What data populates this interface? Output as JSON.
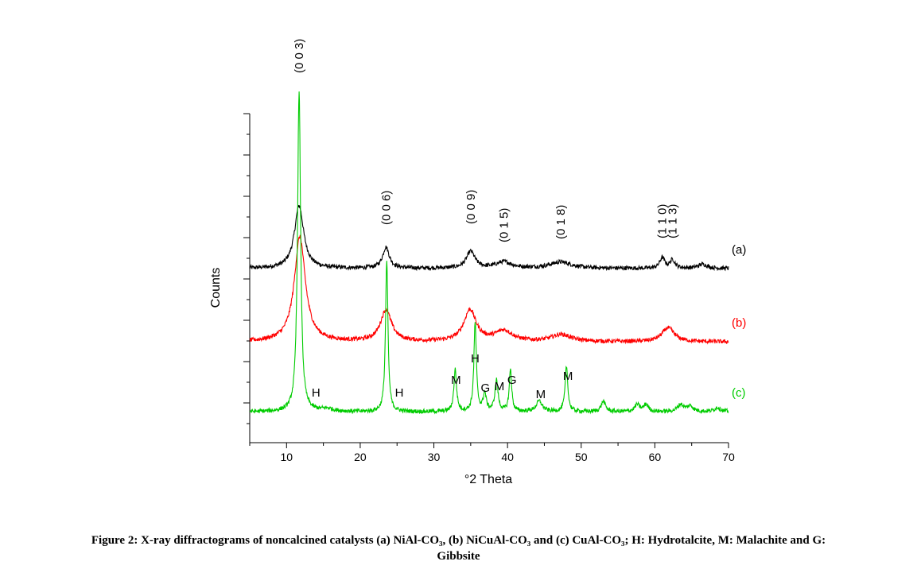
{
  "chart_data": {
    "type": "line",
    "xlabel": "°2 Theta",
    "ylabel": "Counts",
    "xlim": [
      5,
      70
    ],
    "xticks": [
      "10",
      "20",
      "30",
      "40",
      "50",
      "60",
      "70"
    ],
    "yticks_labeled": false,
    "grid": false,
    "series": [
      {
        "name": "(a)",
        "color": "#000000",
        "offset": 2.05,
        "baseline": 0.02,
        "peaks": [
          [
            11.7,
            0.9,
            0.75
          ],
          [
            23.5,
            0.3,
            0.55
          ],
          [
            35.0,
            0.24,
            0.7
          ],
          [
            39.5,
            0.09,
            1.3
          ],
          [
            47.2,
            0.09,
            1.8
          ],
          [
            61.0,
            0.15,
            0.4
          ],
          [
            62.4,
            0.12,
            0.4
          ],
          [
            66.5,
            0.06,
            0.7
          ]
        ]
      },
      {
        "name": "(b)",
        "color": "#ff0000",
        "offset": 1.0,
        "baseline": 0.02,
        "peaks": [
          [
            11.8,
            1.5,
            0.9
          ],
          [
            23.5,
            0.45,
            0.9
          ],
          [
            34.9,
            0.45,
            1.0
          ],
          [
            39.5,
            0.15,
            1.4
          ],
          [
            47.3,
            0.1,
            1.6
          ],
          [
            61.8,
            0.2,
            1.0
          ]
        ]
      },
      {
        "name": "(c)",
        "color": "#00cc00",
        "offset": 0.0,
        "baseline": 0.02,
        "peaks": [
          [
            11.7,
            4.6,
            0.25
          ],
          [
            15.5,
            0.04,
            1.0
          ],
          [
            23.6,
            2.15,
            0.2
          ],
          [
            32.9,
            0.6,
            0.22
          ],
          [
            35.6,
            1.27,
            0.2
          ],
          [
            36.9,
            0.25,
            0.25
          ],
          [
            38.5,
            0.45,
            0.25
          ],
          [
            40.4,
            0.6,
            0.2
          ],
          [
            44.3,
            0.15,
            0.5
          ],
          [
            48.0,
            0.65,
            0.22
          ],
          [
            53.0,
            0.15,
            0.35
          ],
          [
            57.6,
            0.1,
            0.4
          ],
          [
            58.8,
            0.1,
            0.4
          ],
          [
            63.5,
            0.1,
            0.5
          ],
          [
            64.8,
            0.08,
            0.5
          ],
          [
            68.5,
            0.06,
            0.5
          ]
        ]
      }
    ],
    "annotations": {
      "miller": [
        {
          "label": "(0 0 3)",
          "x": 11.7
        },
        {
          "label": "(0 0 6)",
          "x": 23.5
        },
        {
          "label": "(0 0 9)",
          "x": 35.0
        },
        {
          "label": "(0 1 5)",
          "x": 39.5
        },
        {
          "label": "(0 1 8)",
          "x": 47.2
        },
        {
          "label": "(1 1 0)",
          "x": 61.0
        },
        {
          "label": "(1 1 3)",
          "x": 62.4
        }
      ],
      "phases": [
        {
          "label": "H",
          "x": 14.0
        },
        {
          "label": "H",
          "x": 25.3
        },
        {
          "label": "M",
          "x": 33.0
        },
        {
          "label": "H",
          "x": 35.6
        },
        {
          "label": "G",
          "x": 37.0
        },
        {
          "label": "M",
          "x": 38.9
        },
        {
          "label": "G",
          "x": 40.6
        },
        {
          "label": "M",
          "x": 44.5
        },
        {
          "label": "M",
          "x": 48.2
        }
      ]
    }
  },
  "caption": {
    "line1": "Figure 2: X-ray diffractograms of noncalcined catalysts (a) NiAl-CO₃, (b) NiCuAl-CO₃ and (c) CuAl-CO₃; H: Hydrotalcite, M: Malachite and G:",
    "line2": "Gibbsite"
  }
}
